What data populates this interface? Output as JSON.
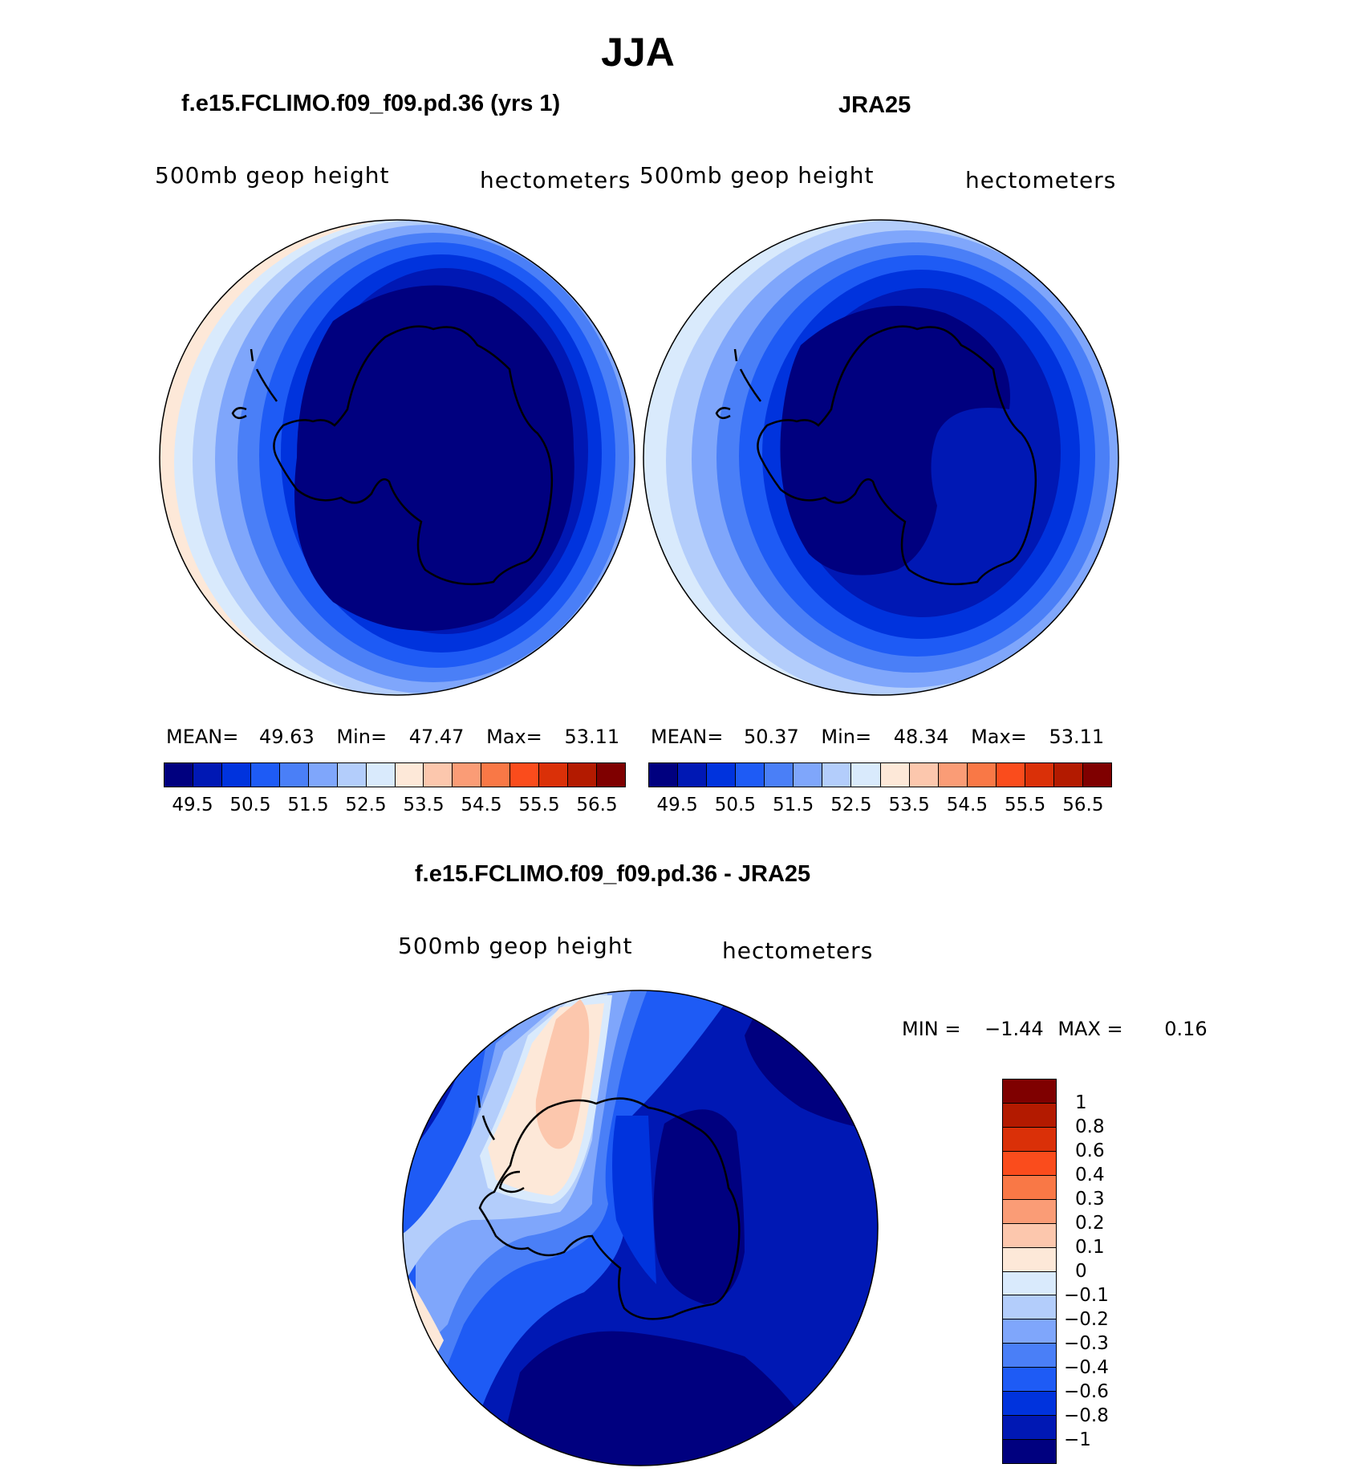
{
  "page_title": "JJA",
  "panels": [
    {
      "header": "f.e15.FCLIMO.f09_f09.pd.36 (yrs 1)",
      "left_label": "500mb geop height",
      "right_label": "hectometers",
      "mean_label": "MEAN=",
      "mean": "49.63",
      "min_label": "Min=",
      "min": "47.47",
      "max_label": "Max=",
      "max": "53.11",
      "colorbar_ticks": [
        "49.5",
        "50.5",
        "51.5",
        "52.5",
        "53.5",
        "54.5",
        "55.5",
        "56.5"
      ]
    },
    {
      "header": "JRA25",
      "left_label": "500mb geop height",
      "right_label": "hectometers",
      "mean_label": "MEAN=",
      "mean": "50.37",
      "min_label": "Min=",
      "min": "48.34",
      "max_label": "Max=",
      "max": "53.11",
      "colorbar_ticks": [
        "49.5",
        "50.5",
        "51.5",
        "52.5",
        "53.5",
        "54.5",
        "55.5",
        "56.5"
      ]
    }
  ],
  "diff": {
    "header": "f.e15.FCLIMO.f09_f09.pd.36 - JRA25",
    "left_label": "500mb geop height",
    "right_label": "hectometers",
    "min_label": "MIN =",
    "min": "−1.44",
    "max_label": "MAX =",
    "max": "0.16",
    "colorbar_ticks": [
      "−1",
      "−0.8",
      "−0.6",
      "−0.4",
      "−0.3",
      "−0.2",
      "−0.1",
      "0",
      "0.1",
      "0.2",
      "0.3",
      "0.4",
      "0.6",
      "0.8",
      "1"
    ]
  },
  "colors": {
    "scale": [
      "#00007f",
      "#0018b4",
      "#0033dd",
      "#1e5bf5",
      "#4a7ff7",
      "#7fa6fb",
      "#b3cdfb",
      "#d9eafc",
      "#fde8d8",
      "#fcc7ad",
      "#fa9c76",
      "#f97846",
      "#fa4c1c",
      "#da3008",
      "#b31a00",
      "#7f0000"
    ],
    "coast": "#000000"
  }
}
